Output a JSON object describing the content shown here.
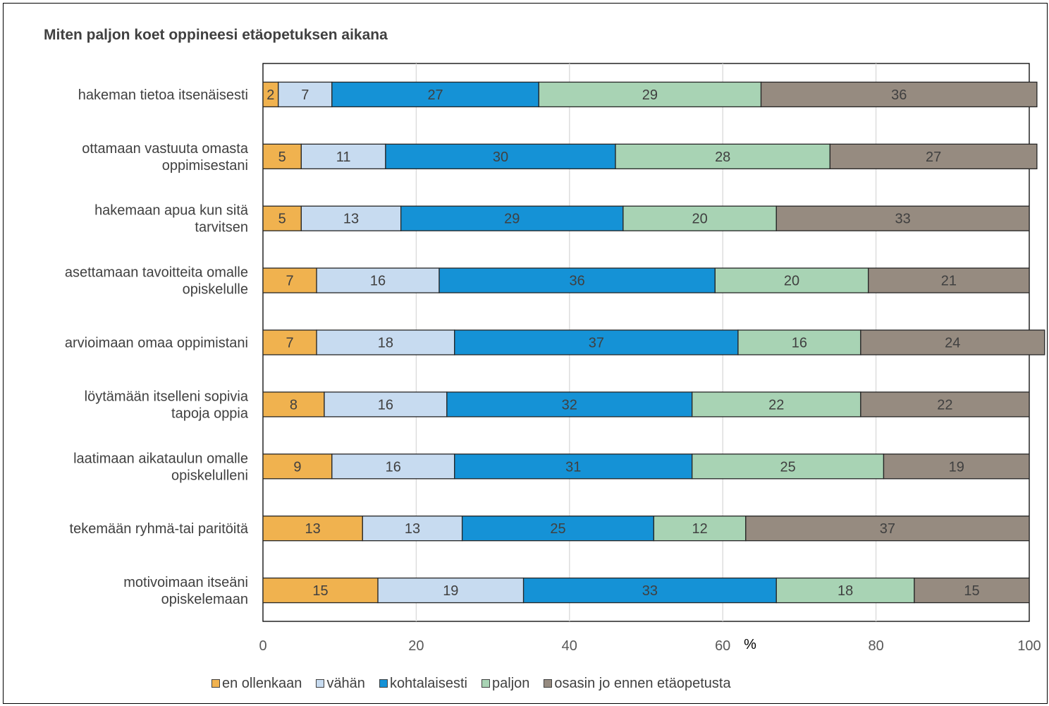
{
  "chart_data": {
    "type": "bar",
    "orientation": "horizontal",
    "stacked": true,
    "title": "Miten paljon koet oppineesi etäopetuksen aikana",
    "xlabel": "%",
    "ylabel": "",
    "xlim": [
      0,
      100
    ],
    "xticks": [
      "0",
      "20",
      "40",
      "60",
      "80",
      "100"
    ],
    "grid": true,
    "legend_position": "bottom",
    "categories": [
      [
        "hakeman tietoa itsenäisesti"
      ],
      [
        "ottamaan vastuuta omasta",
        "oppimisestani"
      ],
      [
        "hakemaan apua kun sitä",
        "tarvitsen"
      ],
      [
        "asettamaan tavoitteita omalle",
        "opiskelulle"
      ],
      [
        "arvioimaan omaa oppimistani"
      ],
      [
        "löytämään itselleni sopivia",
        "tapoja oppia"
      ],
      [
        "laatimaan aikataulun omalle",
        "opiskelulleni"
      ],
      [
        "tekemään ryhmä-tai paritöitä"
      ],
      [
        "motivoimaan itseäni",
        "opiskelemaan"
      ]
    ],
    "series": [
      {
        "name": "en ollenkaan",
        "color": "#F0B24F",
        "values": [
          2,
          5,
          5,
          7,
          7,
          8,
          9,
          13,
          15
        ]
      },
      {
        "name": "vähän",
        "color": "#C7DBF0",
        "values": [
          7,
          11,
          13,
          16,
          18,
          16,
          16,
          13,
          19
        ]
      },
      {
        "name": "kohtalaisesti",
        "color": "#1592D6",
        "values": [
          27,
          30,
          29,
          36,
          37,
          32,
          31,
          25,
          33
        ]
      },
      {
        "name": "paljon",
        "color": "#A8D3B4",
        "values": [
          29,
          28,
          20,
          20,
          16,
          22,
          25,
          12,
          18
        ]
      },
      {
        "name": "osasin jo ennen etäopetusta",
        "color": "#968B80",
        "values": [
          36,
          27,
          33,
          21,
          24,
          22,
          19,
          37,
          15
        ]
      }
    ]
  }
}
